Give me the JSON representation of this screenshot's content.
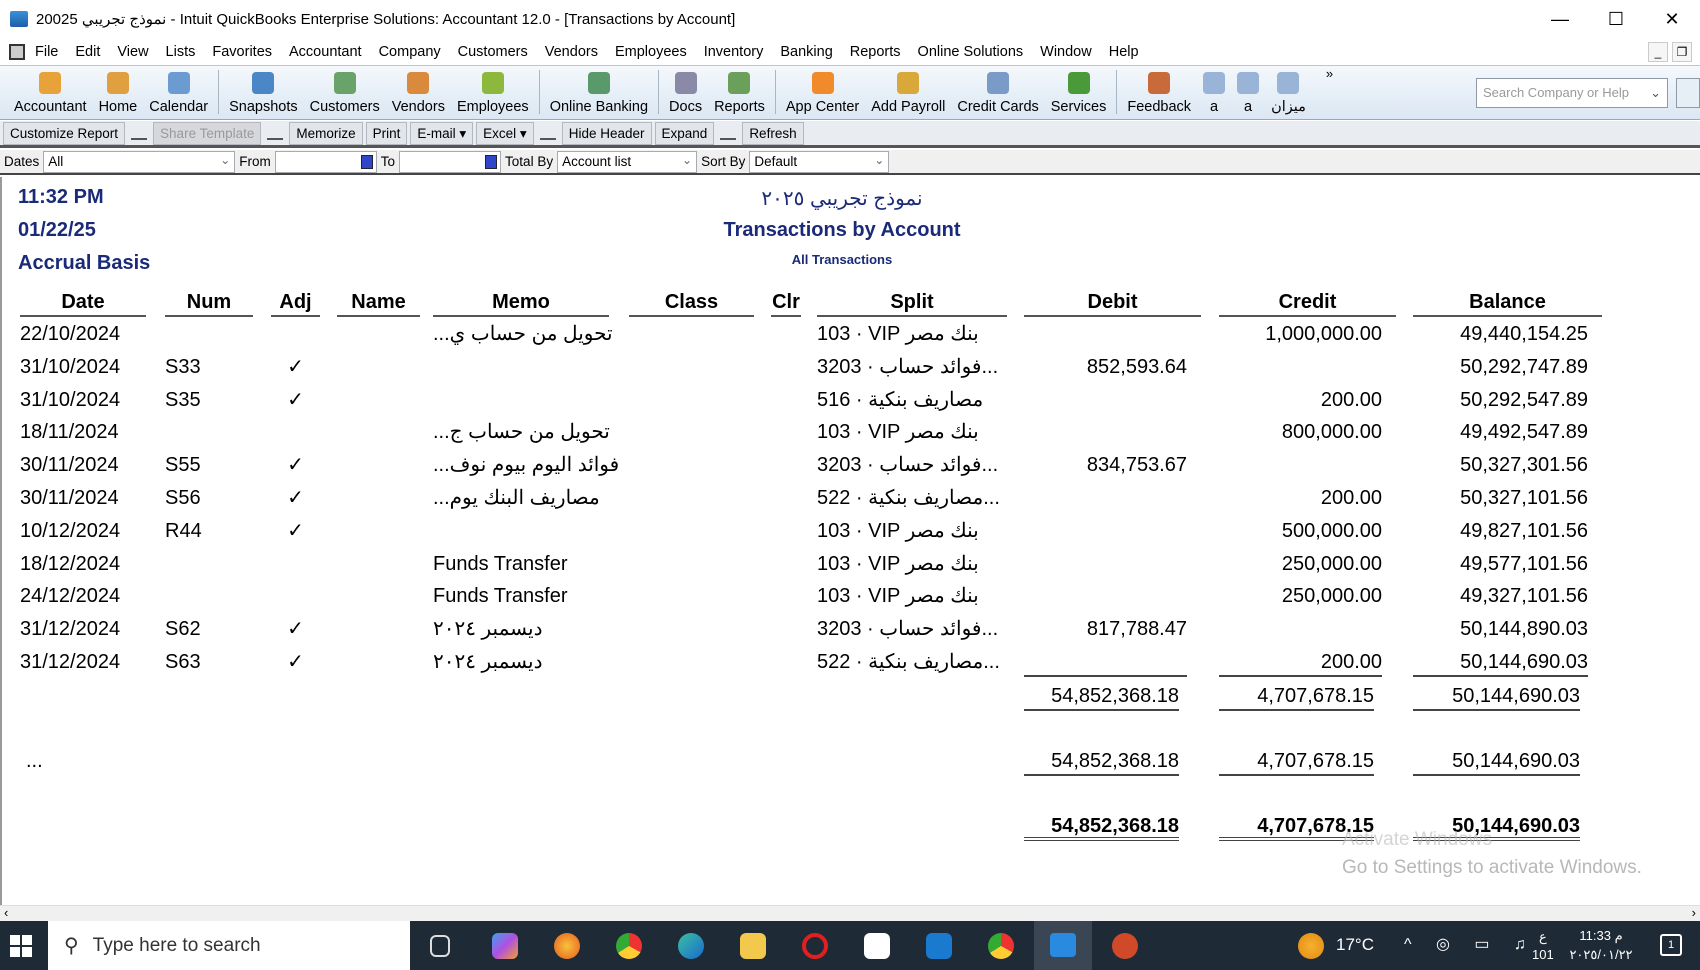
{
  "window": {
    "title": "نموذج تجريبي 20025  - Intuit QuickBooks Enterprise Solutions: Accountant 12.0 - [Transactions by Account]",
    "minimize": "—",
    "maximize": "☐",
    "close": "✕"
  },
  "menu": [
    "File",
    "Edit",
    "View",
    "Lists",
    "Favorites",
    "Accountant",
    "Company",
    "Customers",
    "Vendors",
    "Employees",
    "Inventory",
    "Banking",
    "Reports",
    "Online Solutions",
    "Window",
    "Help"
  ],
  "toolbar": {
    "groups": [
      [
        {
          "label": "Accountant",
          "icon": "accountant-icon",
          "color": "#e8a23a"
        },
        {
          "label": "Home",
          "icon": "home-icon",
          "color": "#e0a040"
        },
        {
          "label": "Calendar",
          "icon": "calendar-icon",
          "color": "#6c9bd2"
        }
      ],
      [
        {
          "label": "Snapshots",
          "icon": "snapshots-icon",
          "color": "#4b86c6"
        },
        {
          "label": "Customers",
          "icon": "customers-icon",
          "color": "#6aa36a"
        },
        {
          "label": "Vendors",
          "icon": "vendors-icon",
          "color": "#d98a3c"
        },
        {
          "label": "Employees",
          "icon": "employees-icon",
          "color": "#8cb83e"
        }
      ],
      [
        {
          "label": "Online Banking",
          "icon": "online-banking-icon",
          "color": "#5a9a6a"
        }
      ],
      [
        {
          "label": "Docs",
          "icon": "docs-icon",
          "color": "#8a8aa8"
        },
        {
          "label": "Reports",
          "icon": "reports-icon",
          "color": "#6aa05a"
        }
      ],
      [
        {
          "label": "App Center",
          "icon": "app-center-icon",
          "color": "#f08a2a"
        },
        {
          "label": "Add Payroll",
          "icon": "add-payroll-icon",
          "color": "#d8a83a"
        },
        {
          "label": "Credit Cards",
          "icon": "credit-cards-icon",
          "color": "#7a9ac8"
        },
        {
          "label": "Services",
          "icon": "services-icon",
          "color": "#4a9a3a"
        }
      ],
      [
        {
          "label": "Feedback",
          "icon": "feedback-icon",
          "color": "#c86a3a"
        },
        {
          "label": "a",
          "icon": "document-icon",
          "color": "#9ab4d8"
        },
        {
          "label": "a",
          "icon": "document-icon",
          "color": "#9ab4d8"
        },
        {
          "label": "ميزان",
          "icon": "document-icon",
          "color": "#9ab4d8"
        }
      ]
    ],
    "more": "»",
    "search_placeholder": "Search Company or Help"
  },
  "report_buttons": {
    "customize": "Customize Report",
    "share": "Share Template",
    "memorize": "Memorize",
    "print": "Print",
    "email": "E-mail ▾",
    "excel": "Excel ▾",
    "hide_header": "Hide Header",
    "expand": "Expand",
    "refresh": "Refresh"
  },
  "filters": {
    "dates_label": "Dates",
    "dates_value": "All",
    "from_label": "From",
    "from_value": "",
    "to_label": "To",
    "to_value": "",
    "total_by_label": "Total By",
    "total_by_value": "Account list",
    "sort_by_label": "Sort By",
    "sort_by_value": "Default"
  },
  "report": {
    "time": "11:32 PM",
    "date": "01/22/25",
    "basis": "Accrual Basis",
    "company": "نموذج تجريبي ٢٠٢٥",
    "title": "Transactions by Account",
    "subtitle": "All Transactions",
    "columns": [
      "Date",
      "Num",
      "Adj",
      "Name",
      "Memo",
      "Class",
      "Clr",
      "Split",
      "Debit",
      "Credit",
      "Balance"
    ],
    "rows": [
      {
        "date": "22/10/2024",
        "num": "",
        "adj": "",
        "name": "",
        "memo": "...تحويل من حساب ي",
        "class": "",
        "clr": "",
        "split": "103 · VIP بنك مصر",
        "debit": "",
        "credit": "1,000,000.00",
        "balance": "49,440,154.25"
      },
      {
        "date": "31/10/2024",
        "num": "S33",
        "adj": "✓",
        "name": "",
        "memo": "",
        "class": "",
        "clr": "",
        "split": "3203 · فوائد حساب...",
        "debit": "852,593.64",
        "credit": "",
        "balance": "50,292,747.89"
      },
      {
        "date": "31/10/2024",
        "num": "S35",
        "adj": "✓",
        "name": "",
        "memo": "",
        "class": "",
        "clr": "",
        "split": "516 · مصاريف بنكية",
        "debit": "",
        "credit": "200.00",
        "balance": "50,292,547.89"
      },
      {
        "date": "18/11/2024",
        "num": "",
        "adj": "",
        "name": "",
        "memo": "...تحويل من حساب ج",
        "class": "",
        "clr": "",
        "split": "103 · VIP بنك مصر",
        "debit": "",
        "credit": "800,000.00",
        "balance": "49,492,547.89"
      },
      {
        "date": "30/11/2024",
        "num": "S55",
        "adj": "✓",
        "name": "",
        "memo": "...فوائد اليوم بيوم نوف",
        "class": "",
        "clr": "",
        "split": "3203 · فوائد حساب...",
        "debit": "834,753.67",
        "credit": "",
        "balance": "50,327,301.56"
      },
      {
        "date": "30/11/2024",
        "num": "S56",
        "adj": "✓",
        "name": "",
        "memo": "...مصاريف البنك يوم",
        "class": "",
        "clr": "",
        "split": "522 · مصاريف بنكية...",
        "debit": "",
        "credit": "200.00",
        "balance": "50,327,101.56"
      },
      {
        "date": "10/12/2024",
        "num": "R44",
        "adj": "✓",
        "name": "",
        "memo": "",
        "class": "",
        "clr": "",
        "split": "103 · VIP بنك مصر",
        "debit": "",
        "credit": "500,000.00",
        "balance": "49,827,101.56"
      },
      {
        "date": "18/12/2024",
        "num": "",
        "adj": "",
        "name": "",
        "memo": "Funds Transfer",
        "class": "",
        "clr": "",
        "split": "103 · VIP بنك مصر",
        "debit": "",
        "credit": "250,000.00",
        "balance": "49,577,101.56"
      },
      {
        "date": "24/12/2024",
        "num": "",
        "adj": "",
        "name": "",
        "memo": "Funds Transfer",
        "class": "",
        "clr": "",
        "split": "103 · VIP بنك مصر",
        "debit": "",
        "credit": "250,000.00",
        "balance": "49,327,101.56"
      },
      {
        "date": "31/12/2024",
        "num": "S62",
        "adj": "✓",
        "name": "",
        "memo": "ديسمبر ٢٠٢٤",
        "class": "",
        "clr": "",
        "split": "3203 · فوائد حساب...",
        "debit": "817,788.47",
        "credit": "",
        "balance": "50,144,890.03"
      },
      {
        "date": "31/12/2024",
        "num": "S63",
        "adj": "✓",
        "name": "",
        "memo": "ديسمبر ٢٠٢٤",
        "class": "",
        "clr": "",
        "split": "522 · مصاريف بنكية...",
        "debit": "",
        "credit": "200.00",
        "balance": "50,144,690.03"
      }
    ],
    "subtotal": {
      "debit": "54,852,368.18",
      "credit": "4,707,678.15",
      "balance": "50,144,690.03"
    },
    "ellipsis": "...",
    "group_total": {
      "debit": "54,852,368.18",
      "credit": "4,707,678.15",
      "balance": "50,144,690.03"
    },
    "grand_total": {
      "debit": "54,852,368.18",
      "credit": "4,707,678.15",
      "balance": "50,144,690.03"
    }
  },
  "watermark": {
    "line1": "Activate Windows",
    "line2": "Go to Settings to activate Windows."
  },
  "taskbar": {
    "search_placeholder": "Type here to search",
    "weather": "17°C",
    "lang": "ع",
    "lang2": "101",
    "time": "11:33 م",
    "date": "٢٠٢٥/٠١/٢٢",
    "notifications": "1"
  }
}
